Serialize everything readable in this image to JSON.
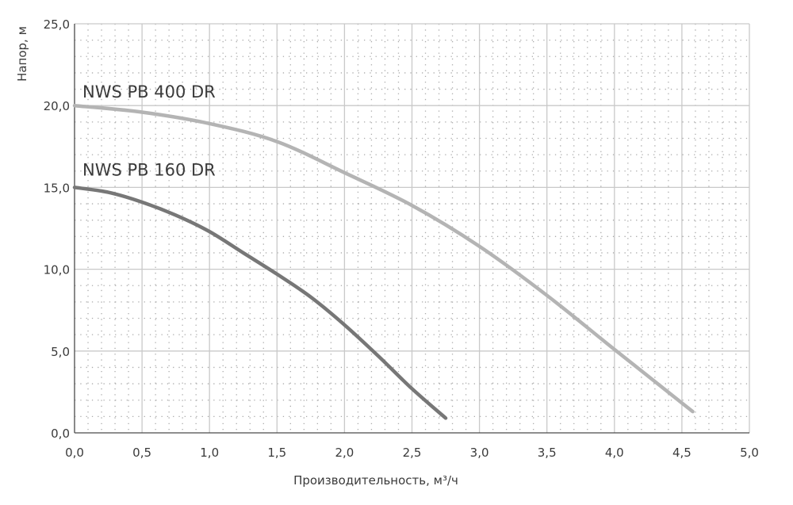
{
  "chart_data": {
    "type": "line",
    "title": "",
    "xlabel": "Производительность, м³/ч",
    "ylabel": "Напор, м",
    "xlim": [
      0,
      5
    ],
    "ylim": [
      0,
      25
    ],
    "x_ticks": [
      {
        "value": 0,
        "label": "0,0"
      },
      {
        "value": 0.5,
        "label": "0,5"
      },
      {
        "value": 1.0,
        "label": "1,0"
      },
      {
        "value": 1.5,
        "label": "1,5"
      },
      {
        "value": 2.0,
        "label": "2,0"
      },
      {
        "value": 2.5,
        "label": "2,5"
      },
      {
        "value": 3.0,
        "label": "3,0"
      },
      {
        "value": 3.5,
        "label": "3,5"
      },
      {
        "value": 4.0,
        "label": "4,0"
      },
      {
        "value": 4.5,
        "label": "4,5"
      },
      {
        "value": 5.0,
        "label": "5,0"
      }
    ],
    "y_ticks": [
      {
        "value": 0,
        "label": "0,0"
      },
      {
        "value": 5,
        "label": "5,0"
      },
      {
        "value": 10,
        "label": "10,0"
      },
      {
        "value": 15,
        "label": "15,0"
      },
      {
        "value": 20,
        "label": "20,0"
      },
      {
        "value": 25,
        "label": "25,0"
      }
    ],
    "grid": true,
    "legend": "none",
    "series": [
      {
        "name": "NWS PB 400 DR",
        "color": "#b4b4b4",
        "x": [
          0,
          0.5,
          1.0,
          1.5,
          2.0,
          2.5,
          3.0,
          3.5,
          4.0,
          4.58
        ],
        "y": [
          20.0,
          19.6,
          18.9,
          17.8,
          15.9,
          13.9,
          11.4,
          8.4,
          5.1,
          1.3
        ]
      },
      {
        "name": "NWS PB 160 DR",
        "color": "#777777",
        "x": [
          0,
          0.25,
          0.5,
          0.75,
          1.0,
          1.25,
          1.5,
          1.75,
          2.0,
          2.25,
          2.5,
          2.75
        ],
        "y": [
          15.0,
          14.7,
          14.1,
          13.3,
          12.3,
          11.0,
          9.7,
          8.3,
          6.6,
          4.7,
          2.7,
          0.9
        ]
      }
    ]
  }
}
